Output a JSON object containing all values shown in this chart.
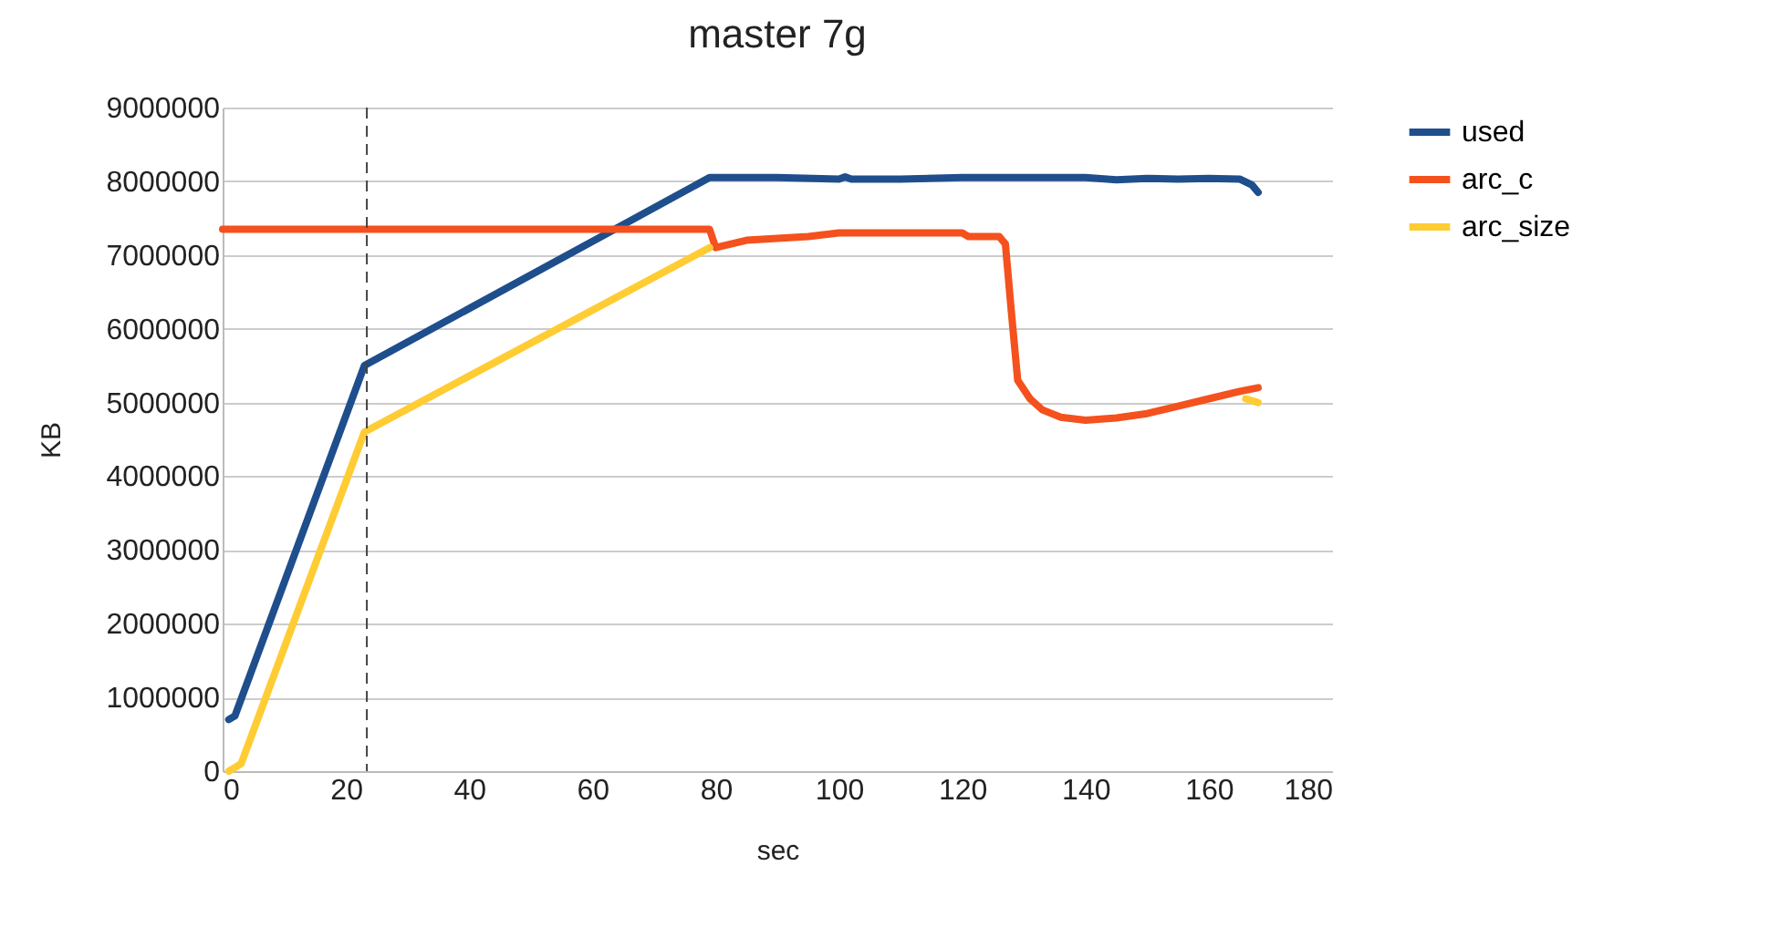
{
  "chart_data": {
    "type": "line",
    "title": "master 7g",
    "xlabel": "sec",
    "ylabel": "KB",
    "xlim": [
      0,
      180
    ],
    "xticks": [
      0,
      20,
      40,
      60,
      80,
      100,
      120,
      140,
      160,
      180
    ],
    "ylim": [
      0,
      9000000
    ],
    "yticks": [
      0,
      1000000,
      2000000,
      3000000,
      4000000,
      5000000,
      6000000,
      7000000,
      8000000,
      9000000
    ],
    "grid": "y",
    "legend": "right",
    "line_style": "solid",
    "marker": "none",
    "series": [
      {
        "name": "used",
        "color": "#1f4e8c",
        "x": [
          1,
          2,
          23,
          79,
          90,
          100,
          101,
          102,
          110,
          120,
          130,
          140,
          145,
          150,
          155,
          160,
          165,
          167,
          168
        ],
        "values": [
          700000,
          750000,
          5500000,
          8050000,
          8050000,
          8030000,
          8060000,
          8030000,
          8030000,
          8050000,
          8050000,
          8050000,
          8020000,
          8040000,
          8030000,
          8040000,
          8030000,
          7950000,
          7850000
        ]
      },
      {
        "name": "arc_c",
        "color": "#f4511e",
        "x": [
          0,
          79,
          80,
          85,
          95,
          100,
          110,
          120,
          121,
          126,
          127,
          128,
          129,
          131,
          133,
          136,
          140,
          145,
          150,
          155,
          160,
          165,
          168
        ],
        "values": [
          7350000,
          7350000,
          7100000,
          7200000,
          7250000,
          7300000,
          7300000,
          7300000,
          7250000,
          7250000,
          7150000,
          6200000,
          5300000,
          5050000,
          4900000,
          4800000,
          4760000,
          4790000,
          4850000,
          4950000,
          5050000,
          5150000,
          5200000
        ]
      },
      {
        "name": "arc_size",
        "color": "#ffcc33",
        "x": [
          1,
          3,
          23,
          79,
          80,
          166,
          168
        ],
        "values": [
          0,
          100000,
          4600000,
          7100000,
          null,
          5050000,
          5000000
        ]
      }
    ],
    "ref_lines": [
      {
        "axis": "x",
        "value": 23.4,
        "color": "#444444",
        "line_style": "dashed"
      }
    ]
  }
}
